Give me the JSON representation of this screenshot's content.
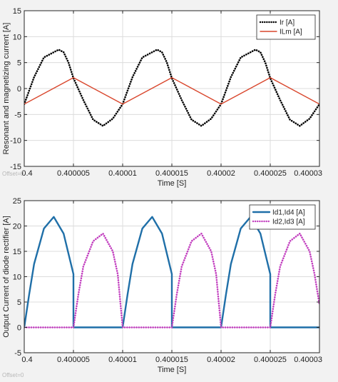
{
  "chart_data": [
    {
      "type": "line",
      "title": "",
      "xlabel": "Time [S]",
      "ylabel": "Resonant and magnetizing current [A]",
      "xlim": [
        0.4,
        0.40003
      ],
      "ylim": [
        -15,
        15
      ],
      "xtick_labels": [
        "0.4",
        "0.400005",
        "0.40001",
        "0.400015",
        "0.40002",
        "0.400025",
        "0.40003"
      ],
      "ytick_labels": [
        "-15",
        "-10",
        "-5",
        "0",
        "5",
        "10",
        "15"
      ],
      "grid": true,
      "legend_location": "top-right",
      "offset_label": "Offset=0",
      "series": [
        {
          "name": "Ir [A]",
          "color": "#000000",
          "style": "dotted",
          "x": [
            0.4,
            0.400001,
            0.400002,
            0.4000035,
            0.400004,
            0.4000045,
            0.400005,
            0.400006,
            0.400007,
            0.400008,
            0.400009,
            0.40001,
            0.400011,
            0.400012,
            0.4000135,
            0.400014,
            0.4000145,
            0.400015,
            0.400016,
            0.400017,
            0.400018,
            0.400019,
            0.40002,
            0.400021,
            0.400022,
            0.4000235,
            0.400024,
            0.4000245,
            0.400025,
            0.400026,
            0.400027,
            0.400028,
            0.400029,
            0.40003
          ],
          "y": [
            -3.0,
            2.2,
            6.0,
            7.5,
            7.0,
            5.0,
            2.0,
            -2.2,
            -6.0,
            -7.2,
            -5.8,
            -3.0,
            2.2,
            6.0,
            7.5,
            7.0,
            5.0,
            2.0,
            -2.2,
            -6.0,
            -7.2,
            -5.8,
            -3.0,
            2.2,
            6.0,
            7.5,
            7.0,
            5.0,
            2.0,
            -2.2,
            -6.0,
            -7.2,
            -5.8,
            -3.0
          ]
        },
        {
          "name": "ILm [A]",
          "color": "#d9462c",
          "style": "solid",
          "x": [
            0.4,
            0.400005,
            0.40001,
            0.400015,
            0.40002,
            0.400025,
            0.40003
          ],
          "y": [
            -3.0,
            2.1,
            -3.0,
            2.1,
            -3.0,
            2.1,
            -3.0
          ]
        }
      ]
    },
    {
      "type": "line",
      "title": "",
      "xlabel": "Time [S]",
      "ylabel": "Output Current of diode rectifier [A]",
      "xlim": [
        0.4,
        0.40003
      ],
      "ylim": [
        -5,
        25
      ],
      "xtick_labels": [
        "0.4",
        "0.400005",
        "0.40001",
        "0.400015",
        "0.40002",
        "0.400025",
        "0.40003"
      ],
      "ytick_labels": [
        "-5",
        "0",
        "5",
        "10",
        "15",
        "20",
        "25"
      ],
      "grid": true,
      "legend_location": "top-right",
      "offset_label": "Offset=0",
      "series": [
        {
          "name": "Id1,Id4 [A]",
          "color": "#1f6fa8",
          "style": "solid",
          "x": [
            0.4,
            0.4000005,
            0.400001,
            0.400002,
            0.400003,
            0.400004,
            0.4000045,
            0.400005,
            0.400005,
            0.40001,
            0.4000105,
            0.400011,
            0.400012,
            0.400013,
            0.400014,
            0.4000145,
            0.400015,
            0.400015,
            0.40002,
            0.4000205,
            0.400021,
            0.400022,
            0.400023,
            0.400024,
            0.4000245,
            0.400025,
            0.400025,
            0.40003
          ],
          "y": [
            0,
            6.5,
            12.5,
            19.5,
            21.8,
            18.5,
            14.5,
            10.5,
            0,
            0,
            6.5,
            12.5,
            19.5,
            21.8,
            18.5,
            14.5,
            10.5,
            0,
            0,
            6.5,
            12.5,
            19.5,
            21.8,
            18.5,
            14.5,
            10.5,
            0,
            0
          ]
        },
        {
          "name": "Id2,Id3 [A]",
          "color": "#c23fbf",
          "style": "dotted",
          "x": [
            0.4,
            0.400005,
            0.4000055,
            0.400006,
            0.400007,
            0.400008,
            0.400009,
            0.4000095,
            0.40001,
            0.400015,
            0.4000155,
            0.400016,
            0.400017,
            0.400018,
            0.400019,
            0.4000195,
            0.40002,
            0.400025,
            0.4000255,
            0.400026,
            0.400027,
            0.400028,
            0.400029,
            0.4000295,
            0.40003
          ],
          "y": [
            0,
            0,
            6.5,
            12.0,
            17.0,
            18.5,
            15.0,
            10.5,
            0,
            0,
            6.5,
            12.0,
            17.0,
            18.5,
            15.0,
            10.5,
            0,
            0,
            6.5,
            12.0,
            17.0,
            18.5,
            15.0,
            10.5,
            4.5
          ]
        }
      ]
    }
  ]
}
